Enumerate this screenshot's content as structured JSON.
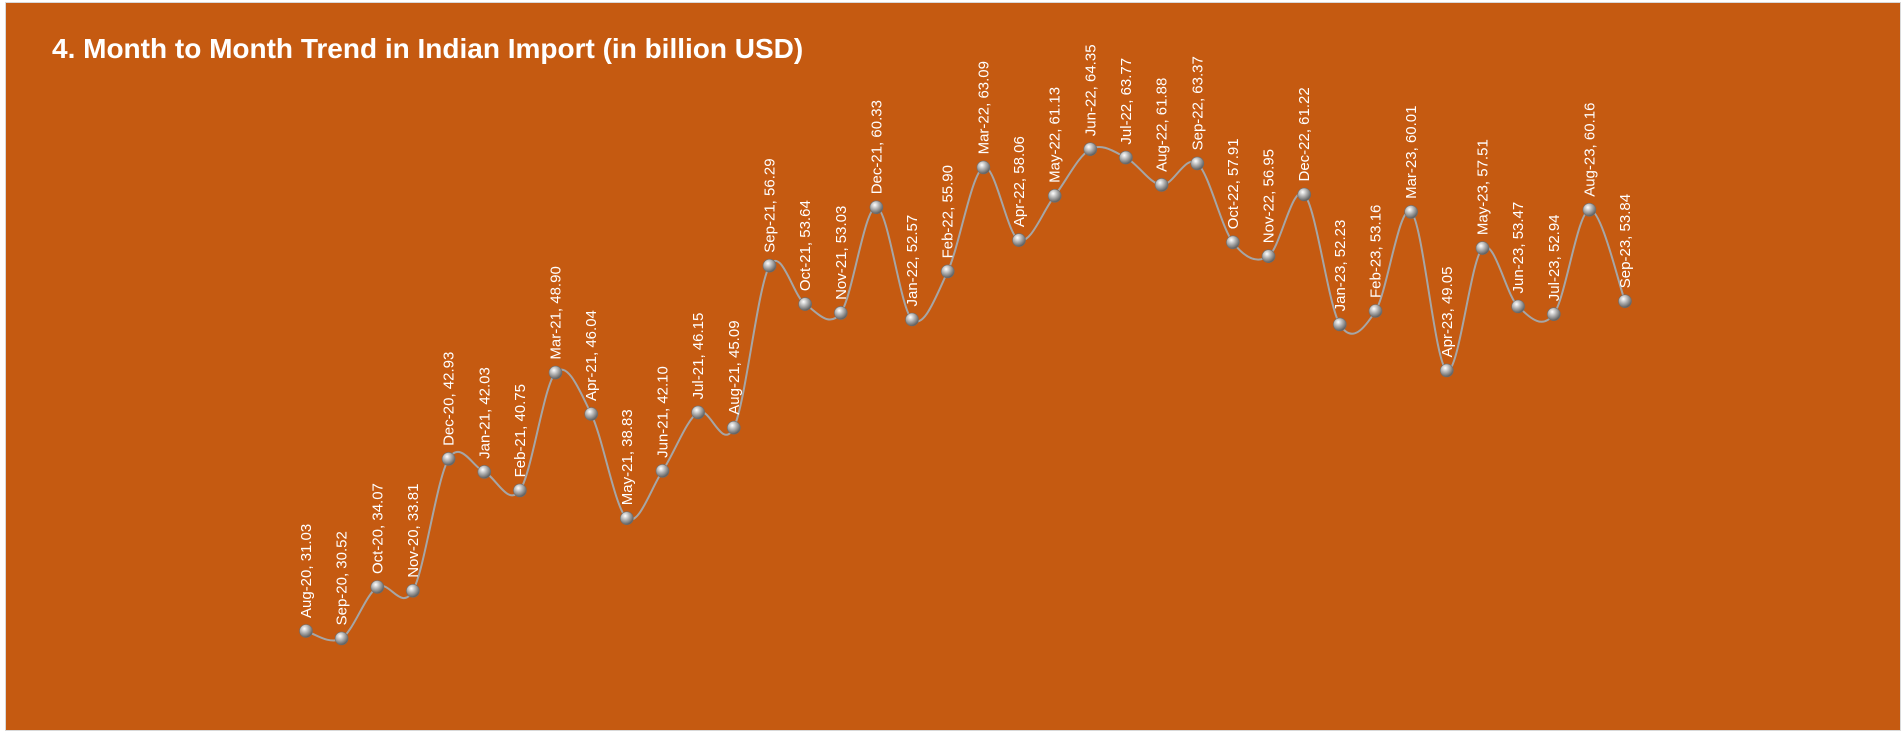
{
  "chart_data": {
    "type": "line",
    "title": "4. Month to Month Trend in Indian Import (in billion USD)",
    "smooth": true,
    "marker": "sphere",
    "colors": {
      "background": "#c55a11",
      "line": "#a6a6a6",
      "text": "#ffffff"
    },
    "series": [
      {
        "points": [
          {
            "x": "Aug-20",
            "y": 31.03
          },
          {
            "x": "Sep-20",
            "y": 30.52
          },
          {
            "x": "Oct-20",
            "y": 34.07
          },
          {
            "x": "Nov-20",
            "y": 33.81
          },
          {
            "x": "Dec-20",
            "y": 42.93
          },
          {
            "x": "Jan-21",
            "y": 42.03
          },
          {
            "x": "Feb-21",
            "y": 40.75
          },
          {
            "x": "Mar-21",
            "y": 48.9
          },
          {
            "x": "Apr-21",
            "y": 46.04
          },
          {
            "x": "May-21",
            "y": 38.83
          },
          {
            "x": "Jun-21",
            "y": 42.1
          },
          {
            "x": "Jul-21",
            "y": 46.15
          },
          {
            "x": "Aug-21",
            "y": 45.09
          },
          {
            "x": "Sep-21",
            "y": 56.29
          },
          {
            "x": "Oct-21",
            "y": 53.64
          },
          {
            "x": "Nov-21",
            "y": 53.03
          },
          {
            "x": "Dec-21",
            "y": 60.33
          },
          {
            "x": "Jan-22",
            "y": 52.57
          },
          {
            "x": "Feb-22",
            "y": 55.9
          },
          {
            "x": "Mar-22",
            "y": 63.09
          },
          {
            "x": "Apr-22",
            "y": 58.06
          },
          {
            "x": "May-22",
            "y": 61.13
          },
          {
            "x": "Jun-22",
            "y": 64.35
          },
          {
            "x": "Jul-22",
            "y": 63.77
          },
          {
            "x": "Aug-22",
            "y": 61.88
          },
          {
            "x": "Sep-22",
            "y": 63.37
          },
          {
            "x": "Oct-22",
            "y": 57.91
          },
          {
            "x": "Nov-22",
            "y": 56.95
          },
          {
            "x": "Dec-22",
            "y": 61.22
          },
          {
            "x": "Jan-23",
            "y": 52.23
          },
          {
            "x": "Feb-23",
            "y": 53.16
          },
          {
            "x": "Mar-23",
            "y": 60.01
          },
          {
            "x": "Apr-23",
            "y": 49.05
          },
          {
            "x": "May-23",
            "y": 57.51
          },
          {
            "x": "Jun-23",
            "y": 53.47
          },
          {
            "x": "Jul-23",
            "y": 52.94
          },
          {
            "x": "Aug-23",
            "y": 60.16
          },
          {
            "x": "Sep-23",
            "y": 53.84
          }
        ]
      }
    ]
  }
}
